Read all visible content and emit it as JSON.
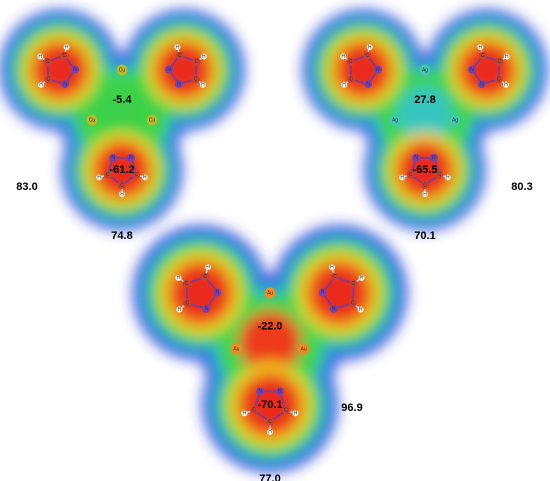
{
  "atom_labels": {
    "carbon": "C",
    "nitrogen": "N",
    "hydrogen": "H"
  },
  "panels": [
    {
      "metal": "Cu",
      "center": "-5.4",
      "ring": "-61.2",
      "side": "83.0",
      "bottom": "74.8"
    },
    {
      "metal": "Ag",
      "center": "27.8",
      "ring": "-65.5",
      "side": "80.3",
      "bottom": "70.1"
    },
    {
      "metal": "Au",
      "center": "-22.0",
      "ring": "-70.1",
      "side": "96.9",
      "bottom": "77.0"
    }
  ]
}
